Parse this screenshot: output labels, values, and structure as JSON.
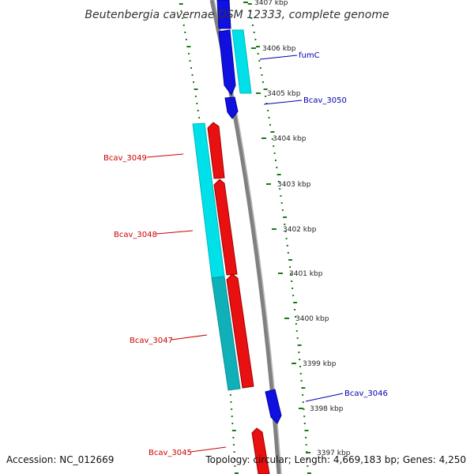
{
  "title": "Beutenbergia cavernae DSM 12333, complete genome",
  "footer": {
    "accession": "Accession: NC_012669",
    "summary": "Topology: circular; Length: 4,669,183 bp; Genes: 4,250"
  },
  "scale_ticks": [
    {
      "label": "3407 kbp",
      "faded": false
    },
    {
      "label": "3406 kbp",
      "faded": false
    },
    {
      "label": "3405 kbp",
      "faded": false
    },
    {
      "label": "3404 kbp",
      "faded": false
    },
    {
      "label": "3403 kbp",
      "faded": false
    },
    {
      "label": "3402 kbp",
      "faded": false
    },
    {
      "label": "3401 kbp",
      "faded": false
    },
    {
      "label": "3400 kbp",
      "faded": false
    },
    {
      "label": "3399 kbp",
      "faded": false
    },
    {
      "label": "3398 kbp",
      "faded": false
    },
    {
      "label": "3397 kbp",
      "faded": true
    }
  ],
  "gene_labels": [
    {
      "text": "fumC",
      "strand": "forward"
    },
    {
      "text": "Bcav_3050",
      "strand": "forward"
    },
    {
      "text": "Bcav_3049",
      "strand": "reverse"
    },
    {
      "text": "Bcav_3048",
      "strand": "reverse"
    },
    {
      "text": "Bcav_3047",
      "strand": "reverse"
    },
    {
      "text": "Bcav_3046",
      "strand": "forward"
    },
    {
      "text": "Bcav_3045",
      "strand": "reverse"
    }
  ],
  "colors": {
    "forward_gene": "#1010e0",
    "forward_cds": "#00e0e8",
    "reverse_gene": "#e81010",
    "reverse_cds": "#00e0e8",
    "reverse_cds_dark": "#10b0b8",
    "forward_label": "#0000b0",
    "reverse_label": "#cc0000",
    "backbone": "#808080",
    "dots": "#1a7a1a"
  }
}
